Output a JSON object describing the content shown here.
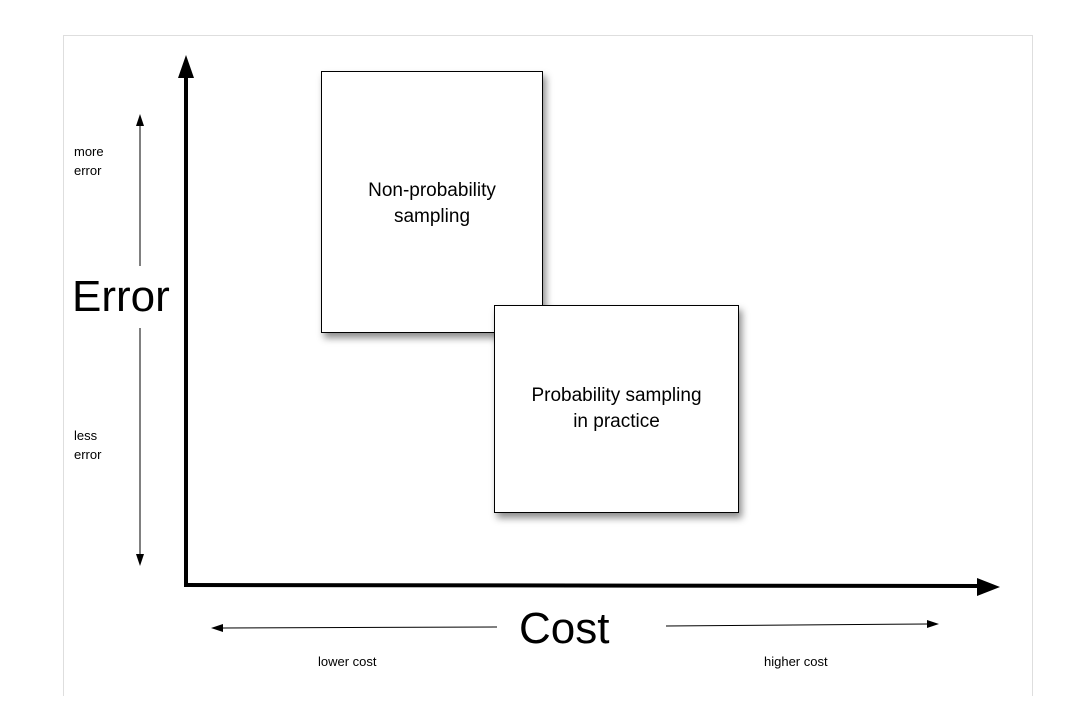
{
  "diagram": {
    "y_axis": {
      "title": "Error",
      "top_label": "more\nerror",
      "bottom_label": "less\nerror"
    },
    "x_axis": {
      "title": "Cost",
      "left_label": "lower cost",
      "right_label": "higher cost"
    },
    "boxes": [
      {
        "lines": [
          "Non-probability",
          "sampling"
        ]
      },
      {
        "lines": [
          "Probability sampling",
          "in practice"
        ]
      }
    ]
  }
}
